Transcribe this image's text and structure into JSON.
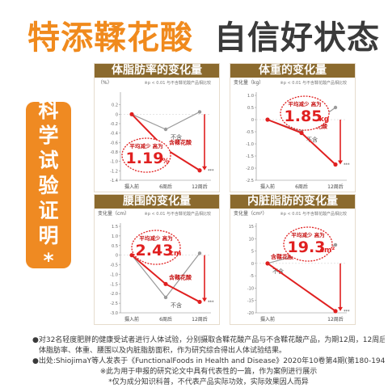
{
  "headline": {
    "part1": "特添鞣花酸",
    "part2": "自信好状态"
  },
  "badge": {
    "chars": [
      "科",
      "学",
      "试",
      "验",
      "证",
      "明",
      "*"
    ]
  },
  "colors": {
    "accent": "#f08a1d",
    "panel_header": "#8b6a2e",
    "active_series": "#e02020",
    "control_series": "#9a9a9a"
  },
  "chart_data": [
    {
      "type": "line",
      "title": "体脂肪率的变化量",
      "unit_label": "（%）",
      "note": "※p < 0.01 与不含鞣花酸产品相比较",
      "categories": [
        "摄入前",
        "6周后",
        "12周后"
      ],
      "ylim": [
        -1.4,
        0.4
      ],
      "yticks": [
        "0.2",
        "0",
        "-0.2",
        "-0.4",
        "-0.6",
        "-0.8",
        "-1.0",
        "-1.2",
        "-1.4"
      ],
      "series": [
        {
          "name": "含鞣花酸",
          "values": [
            0,
            -0.74,
            -1.19
          ],
          "color": "#e02020"
        },
        {
          "name": "不含",
          "values": [
            0,
            -0.32,
            0.05
          ],
          "color": "#9a9a9a"
        }
      ],
      "callout": {
        "label": "平均减少 高为",
        "value": "1.19",
        "unit": "%"
      },
      "significance": "***"
    },
    {
      "type": "line",
      "title": "体重的变化量",
      "unit_label": "变化量（kg）",
      "note": "※p < 0.01 与不含鞣花酸产品相比较",
      "categories": [
        "摄入前",
        "6周后",
        "12周后"
      ],
      "ylim": [
        -2.5,
        1.0
      ],
      "yticks": [
        "1.0",
        "0.5",
        "0",
        "-0.5",
        "-1.0",
        "-1.5",
        "-2.0",
        "-2.5"
      ],
      "series": [
        {
          "name": "含鞣花酸",
          "values": [
            0,
            -0.55,
            -1.85
          ],
          "color": "#e02020"
        },
        {
          "name": "不含",
          "values": [
            0,
            -0.5,
            0.5
          ],
          "color": "#9a9a9a"
        }
      ],
      "callout": {
        "label": "平均减少 高为",
        "value": "1.85",
        "unit": "kg"
      },
      "significance": "***"
    },
    {
      "type": "line",
      "title": "腰围的变化量",
      "unit_label": "变化量（cm）",
      "note": "※p < 0.01 与不含鞣花酸产品相比较",
      "categories": [
        "摄入前",
        "6周后",
        "12周后"
      ],
      "ylim": [
        -3.0,
        1.5
      ],
      "yticks": [
        "1.5",
        "1.0",
        "0.5",
        "0",
        "-0.5",
        "-1.0",
        "-1.5",
        "-2.0",
        "-2.5",
        "-3.0"
      ],
      "series": [
        {
          "name": "含鞣花酸",
          "values": [
            0,
            -1.5,
            -2.43
          ],
          "color": "#e02020"
        },
        {
          "name": "不含",
          "values": [
            0,
            -2.2,
            0.1
          ],
          "color": "#9a9a9a"
        }
      ],
      "callout": {
        "label": "平均减少 高为",
        "value": "2.43",
        "unit": "cm"
      },
      "significance": "***"
    },
    {
      "type": "line",
      "title": "内脏脂肪的变化量",
      "unit_label": "变化量（cm²）",
      "note": "※p < 0.01 与不含鞣花酸产品相比较",
      "categories": [
        "摄入前",
        "12周后"
      ],
      "ylim": [
        -20,
        15
      ],
      "yticks": [
        "15",
        "10",
        "5",
        "0",
        "-5",
        "-10",
        "-15",
        "-20"
      ],
      "series": [
        {
          "name": "含鞣花酸",
          "values": [
            0,
            -19.3
          ],
          "color": "#e02020"
        },
        {
          "name": "不含",
          "values": [
            0,
            7.5
          ],
          "color": "#9a9a9a"
        }
      ],
      "callout": {
        "label": "平均减少 高为",
        "value": "19.3",
        "unit": "cm²"
      },
      "significance": "***"
    }
  ],
  "footnotes": [
    "●对32名轻度肥胖的健康受试者进行人体试验，分别摄取含鞣花酸产品与不含鞣花酸产品，为期12周，12周后测量",
    "体脂肪率、体重、腰围以及内脏脂肪面积，作为研究综合得出人体试验结果。",
    "●出处:ShiojimaY等人发表于《FunctionalFoods in Health and Disease》2020年10卷第4期(第180-194页)之图表",
    "※此为用于申报的研究论文中具有代表性的一篇，作为案例进行展示",
    "*仅为成分知识科普，不代表产品实际功效，实际效果因人而异"
  ]
}
